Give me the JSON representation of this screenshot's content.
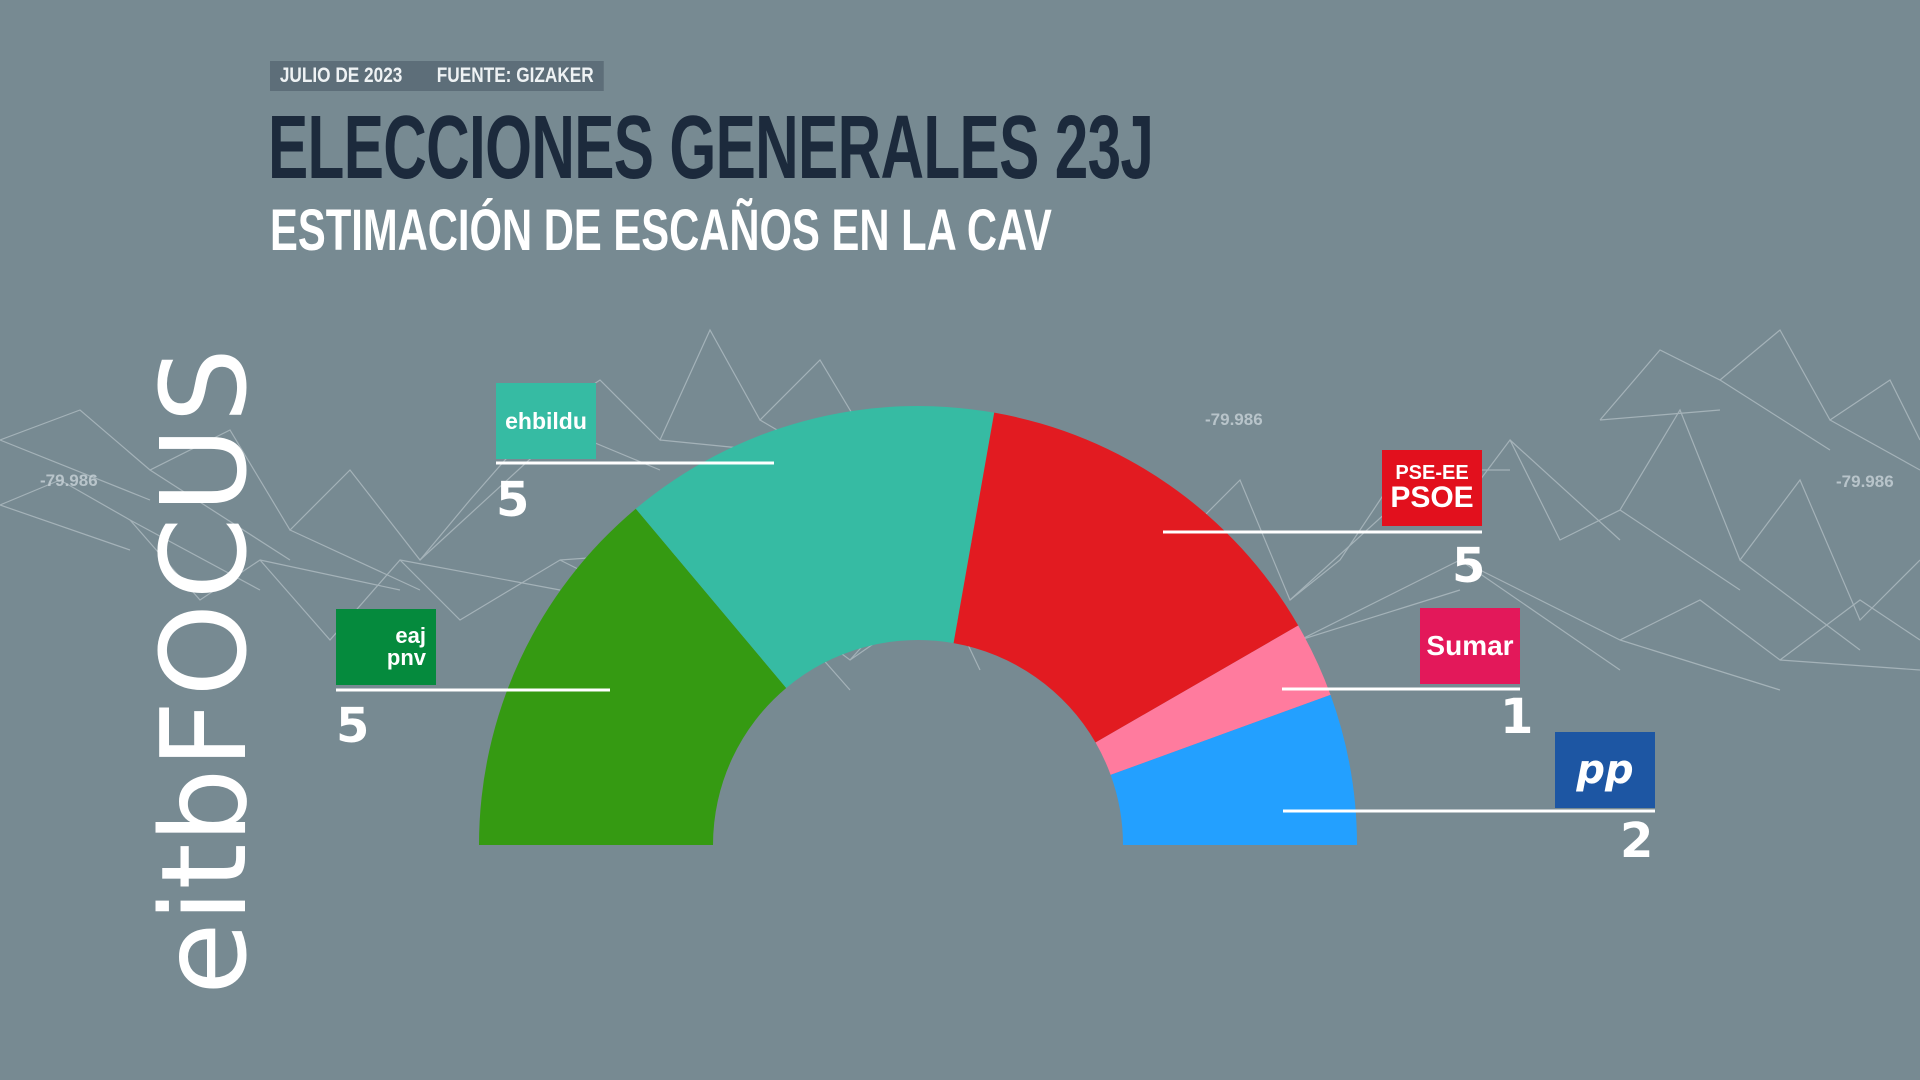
{
  "header": {
    "date": "JULIO DE 2023",
    "source": "FUENTE: GIZAKER",
    "title": "ELECCIONES GENERALES 23J",
    "subtitle": "ESTIMACIÓN DE ESCAÑOS EN LA CAV"
  },
  "brand": {
    "part1": "eitb",
    "part2": "FOCUS"
  },
  "background_labels": [
    "-79.986",
    "-79.986",
    "-79.986"
  ],
  "colors": {
    "background": "#778a92",
    "title": "#1c2a3c",
    "pnv": "#359a12",
    "bildu": "#36bba3",
    "psoe": "#e21b21",
    "sumar": "#ff7b9e",
    "pp": "#23a0ff"
  },
  "chart_data": {
    "type": "pie",
    "variant": "parliament-semicircle",
    "total_seats": 18,
    "series": [
      {
        "name": "EAJ-PNV",
        "logo_text": [
          "eaj",
          "pnv"
        ],
        "seats": 5,
        "color": "#359a12",
        "logo_bg": "#058a3d"
      },
      {
        "name": "EH Bildu",
        "logo_text": [
          "ehbildu"
        ],
        "seats": 5,
        "color": "#36bba3",
        "logo_bg": "#36bba3"
      },
      {
        "name": "PSE-EE PSOE",
        "logo_text": [
          "PSE-EE",
          "PSOE"
        ],
        "seats": 5,
        "color": "#e21b21",
        "logo_bg": "#e2101d"
      },
      {
        "name": "Sumar",
        "logo_text": [
          "Sumar"
        ],
        "seats": 1,
        "color": "#ff7b9e",
        "logo_bg": "#e3185a"
      },
      {
        "name": "PP",
        "logo_text": [
          "pp"
        ],
        "seats": 2,
        "color": "#23a0ff",
        "logo_bg": "#1d56a3"
      }
    ]
  }
}
